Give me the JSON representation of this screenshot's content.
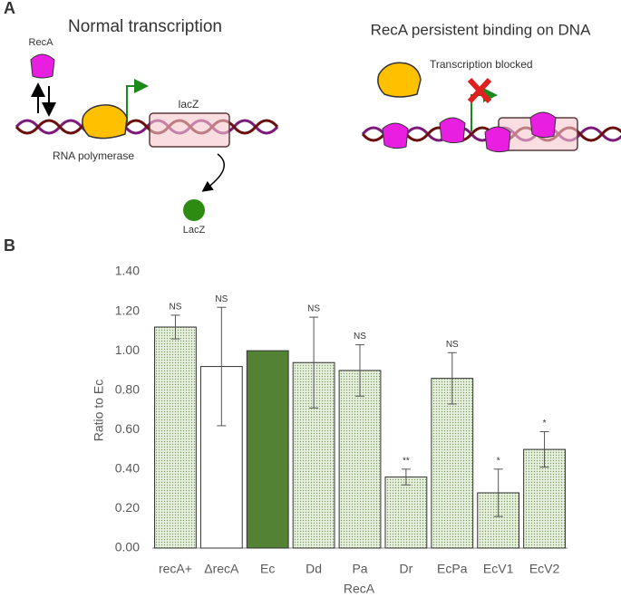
{
  "panel_a": {
    "label": "A",
    "left_title": "Normal transcription",
    "right_title": "RecA persistent binding on DNA",
    "reca": "RecA",
    "lacz_gene": "lacZ",
    "polymerase": "RNA polymerase",
    "lacz_protein": "LacZ",
    "blocked": "Transcription blocked"
  },
  "chart_data": {
    "type": "bar",
    "panel_label": "B",
    "y_label": "Ratio to Ec",
    "x_label": "RecA",
    "categories": [
      "recA+",
      "ΔrecA",
      "Ec",
      "Dd",
      "Pa",
      "Dr",
      "EcPa",
      "EcV1",
      "EcV2"
    ],
    "values": [
      1.12,
      0.92,
      1.0,
      0.94,
      0.9,
      0.36,
      0.86,
      0.28,
      0.5
    ],
    "errors": [
      0.06,
      0.3,
      null,
      0.23,
      0.13,
      0.04,
      0.13,
      0.12,
      0.09
    ],
    "annotations": [
      "NS",
      "NS",
      null,
      "NS",
      "NS",
      "**",
      "NS",
      "*",
      "*"
    ],
    "fill_styles": [
      "dots",
      "plain",
      "solid",
      "dots",
      "dots",
      "dots",
      "dots",
      "dots",
      "dots"
    ],
    "color": "#548235",
    "ylim": [
      0,
      1.4
    ],
    "yticks": [
      {
        "value": 0,
        "label": "0.00"
      },
      {
        "value": 0.2,
        "label": "0.20"
      },
      {
        "value": 0.4,
        "label": "0.40"
      },
      {
        "value": 0.6,
        "label": "0.60"
      },
      {
        "value": 0.8,
        "label": "0.80"
      },
      {
        "value": 1.0,
        "label": "1.00"
      },
      {
        "value": 1.2,
        "label": "1.20"
      },
      {
        "value": 1.4,
        "label": "1.40"
      }
    ]
  }
}
